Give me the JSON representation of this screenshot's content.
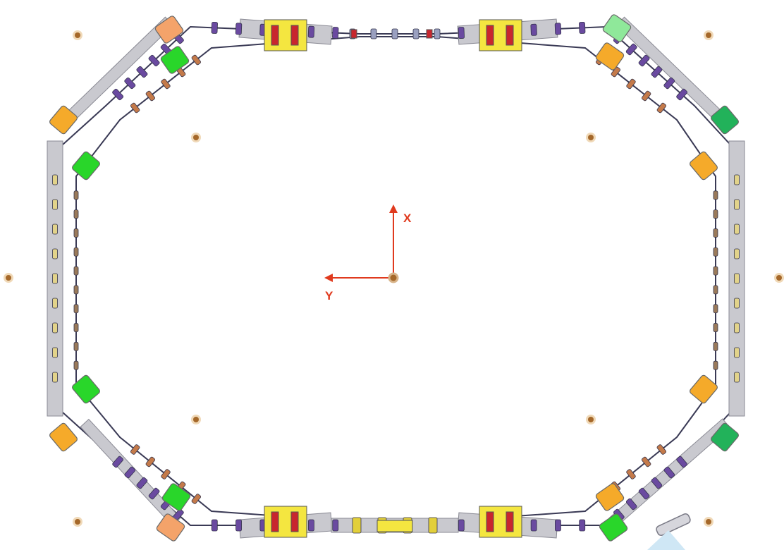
{
  "axes": {
    "x_label": "X",
    "y_label": "Y",
    "color": "#e03a1e"
  },
  "colors": {
    "green_magnet": "#29d62a",
    "light_green_magnet": "#8fe89a",
    "dark_green_magnet": "#22b25a",
    "orange_magnet": "#f5aa2a",
    "salmon_magnet": "#f4a36a",
    "yellow_block": "#f4e640",
    "red_block": "#c8262e",
    "beam_pipe": "#3a3a55",
    "support_beam": "#c9c9cf",
    "copper_bolt": "#a5682a",
    "purple_quad": "#6a4aa0"
  },
  "icons": {
    "origin_marker": "bolt-icon",
    "arrow_x": "arrow-up-icon",
    "arrow_y": "arrow-left-icon"
  }
}
